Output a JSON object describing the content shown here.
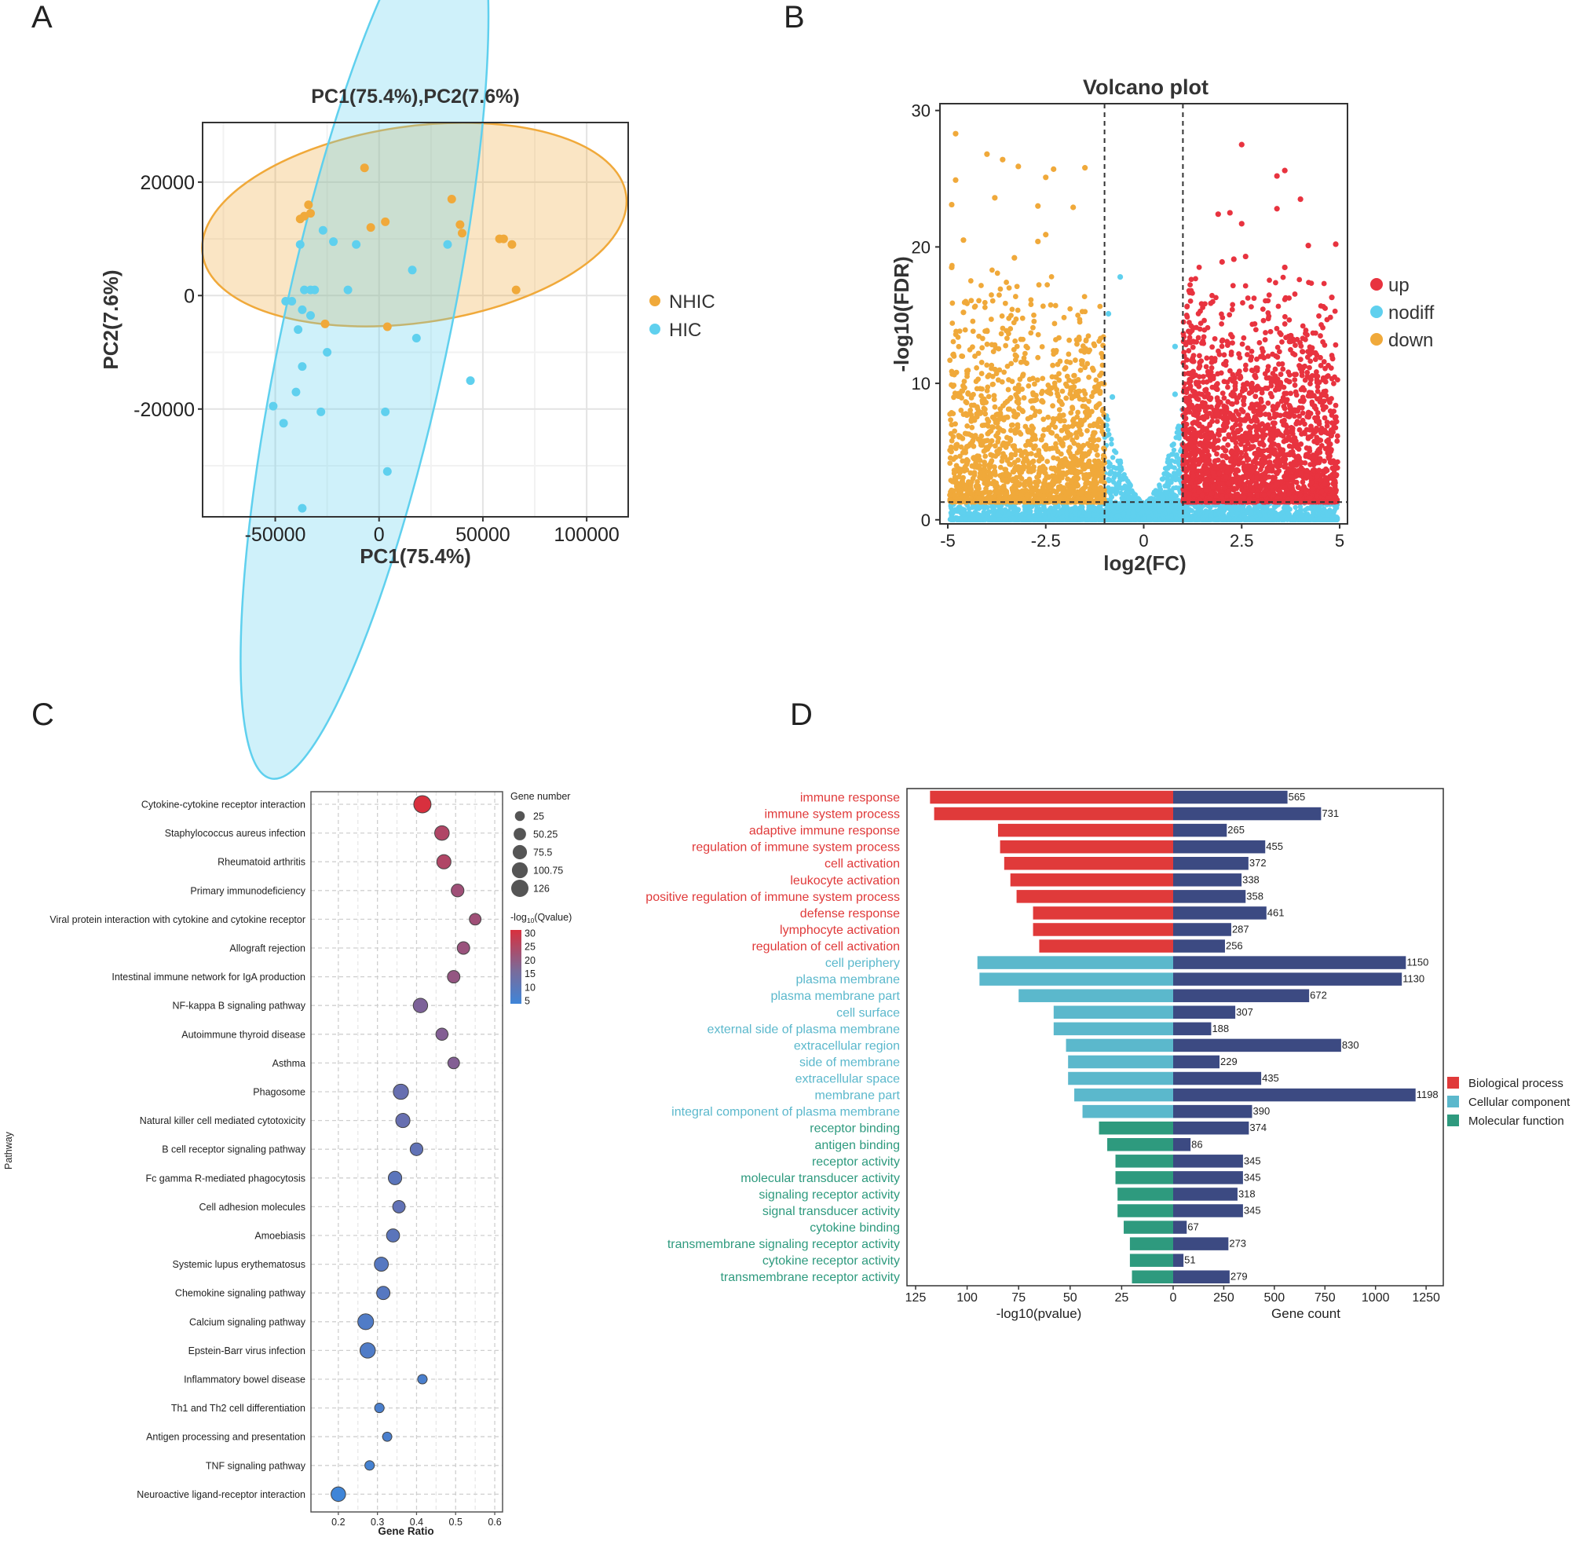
{
  "panels": {
    "a": "A",
    "b": "B",
    "c": "C",
    "d": "D"
  },
  "chart_data": [
    {
      "id": "pca",
      "type": "scatter",
      "title": "PC1(75.4%),PC2(7.6%)",
      "xlabel": "PC1(75.4%)",
      "ylabel": "PC2(7.6%)",
      "xlim": [
        -85000,
        120000
      ],
      "ylim": [
        -39000,
        30500
      ],
      "xticks": [
        -50000,
        0,
        50000,
        100000
      ],
      "xtick_labels": [
        "-50000",
        "0",
        "50000",
        "100000"
      ],
      "yticks": [
        -20000,
        0,
        20000
      ],
      "ytick_labels": [
        "-20000",
        "0",
        "20000"
      ],
      "grid": true,
      "legend_position": "right",
      "colors": {
        "NHIC": "#f0a93a",
        "HIC": "#5fd0ee"
      },
      "legend": [
        "NHIC",
        "HIC"
      ],
      "series": [
        {
          "name": "NHIC",
          "points": [
            [
              -7000,
              22500
            ],
            [
              -38000,
              13500
            ],
            [
              -34000,
              16000
            ],
            [
              -36000,
              14000
            ],
            [
              -33000,
              14500
            ],
            [
              -4000,
              12000
            ],
            [
              3000,
              13000
            ],
            [
              35000,
              17000
            ],
            [
              39000,
              12500
            ],
            [
              40000,
              11000
            ],
            [
              58000,
              10000
            ],
            [
              60000,
              10000
            ],
            [
              64000,
              9000
            ],
            [
              66000,
              1000
            ],
            [
              -26000,
              -5000
            ],
            [
              4000,
              -5500
            ]
          ]
        },
        {
          "name": "HIC",
          "points": [
            [
              -27000,
              11500
            ],
            [
              -22000,
              9500
            ],
            [
              -38000,
              9000
            ],
            [
              -11000,
              9000
            ],
            [
              33000,
              9000
            ],
            [
              16000,
              4500
            ],
            [
              -15000,
              1000
            ],
            [
              -36000,
              1000
            ],
            [
              -33000,
              1000
            ],
            [
              -31000,
              1000
            ],
            [
              -45000,
              -1000
            ],
            [
              -42000,
              -1000
            ],
            [
              -37000,
              -2500
            ],
            [
              -33000,
              -3500
            ],
            [
              -39000,
              -6000
            ],
            [
              -25000,
              -10000
            ],
            [
              -37000,
              -12500
            ],
            [
              -40000,
              -17000
            ],
            [
              -28000,
              -20500
            ],
            [
              -51000,
              -19500
            ],
            [
              -46000,
              -22500
            ],
            [
              3000,
              -20500
            ],
            [
              18000,
              -7500
            ],
            [
              44000,
              -15000
            ],
            [
              4000,
              -31000
            ],
            [
              -37000,
              -37500
            ]
          ]
        }
      ],
      "ellipses": [
        {
          "group": "NHIC",
          "center": [
            17000,
            12500
          ],
          "radii": [
            103000,
            16500
          ],
          "rotation": -8
        },
        {
          "group": "HIC",
          "center": [
            -7000,
            -7500
          ],
          "radii": [
            62000,
            40000
          ],
          "rotation": -78
        }
      ]
    },
    {
      "id": "volcano",
      "type": "scatter",
      "title": "Volcano plot",
      "xlabel": "log2(FC)",
      "ylabel": "-log10(FDR)",
      "xlim": [
        -5.2,
        5.2
      ],
      "ylim": [
        -0.3,
        30.5
      ],
      "xticks": [
        -5,
        -2.5,
        0,
        2.5,
        5
      ],
      "xtick_labels": [
        "-5",
        "-2.5",
        "0",
        "2.5",
        "5"
      ],
      "yticks": [
        0,
        10,
        20,
        30
      ],
      "ytick_labels": [
        "0",
        "10",
        "20",
        "30"
      ],
      "grid": false,
      "fc_threshold": 1,
      "fdr_threshold_log": 1.3,
      "legend_position": "right",
      "colors": {
        "up": "#e8333f",
        "nodiff": "#5fd0ee",
        "down": "#f0a93a"
      },
      "legend": [
        "up",
        "nodiff",
        "down"
      ],
      "highlight_points": {
        "up": [
          [
            2.5,
            27.5
          ],
          [
            3.4,
            25.2
          ],
          [
            3.6,
            25.6
          ],
          [
            4.0,
            23.5
          ],
          [
            3.4,
            22.8
          ],
          [
            2.2,
            22.5
          ],
          [
            1.9,
            22.4
          ],
          [
            2.5,
            21.7
          ],
          [
            4.9,
            20.2
          ],
          [
            4.2,
            20.1
          ],
          [
            2.6,
            19.3
          ],
          [
            2.3,
            19.1
          ],
          [
            2.0,
            18.9
          ],
          [
            3.6,
            18.5
          ],
          [
            4.8,
            16.3
          ]
        ],
        "down": [
          [
            -4.8,
            28.3
          ],
          [
            -4.0,
            26.8
          ],
          [
            -3.2,
            25.9
          ],
          [
            -3.6,
            26.4
          ],
          [
            -2.5,
            25.1
          ],
          [
            -1.5,
            25.8
          ],
          [
            -2.3,
            25.7
          ],
          [
            -4.8,
            24.9
          ],
          [
            -3.8,
            23.6
          ],
          [
            -2.7,
            23.0
          ],
          [
            -4.9,
            23.1
          ],
          [
            -1.8,
            22.9
          ],
          [
            -4.6,
            20.5
          ],
          [
            -2.5,
            20.9
          ],
          [
            -4.6,
            15.2
          ],
          [
            -4.9,
            18.5
          ],
          [
            -3.3,
            19.2
          ],
          [
            -2.7,
            20.4
          ]
        ],
        "nodiff": [
          [
            -0.6,
            17.8
          ],
          [
            -0.9,
            15.1
          ],
          [
            0.8,
            12.7
          ],
          [
            0.8,
            9.2
          ],
          [
            -0.8,
            9.0
          ]
        ]
      }
    },
    {
      "id": "kegg",
      "type": "scatter",
      "ylabel": "Pathway",
      "xlabel": "Gene Ratio",
      "xlim": [
        0.13,
        0.62
      ],
      "xticks": [
        0.2,
        0.3,
        0.4,
        0.5,
        0.6
      ],
      "xtick_labels": [
        "0.2",
        "0.3",
        "0.4",
        "0.5",
        "0.6"
      ],
      "grid": true,
      "legend_position": "right",
      "size_legend": {
        "title": "Gene number",
        "values": [
          25,
          50.25,
          75.5,
          100.75,
          126
        ],
        "labels": [
          "25",
          "50.25",
          "75.5",
          "100.75",
          "126"
        ]
      },
      "color_legend": {
        "title_prefix": "-log",
        "title_sub": "10",
        "title_suffix": "(Qvalue)",
        "ticks": [
          30,
          25,
          20,
          15,
          10,
          5
        ],
        "tick_labels": [
          "30",
          "25",
          "20",
          "15",
          "10",
          "5"
        ],
        "low_color": "#3f85d8",
        "high_color": "#d8303e"
      },
      "pathways": [
        "Cytokine-cytokine receptor interaction",
        "Staphylococcus aureus infection",
        "Rheumatoid arthritis",
        "Primary immunodeficiency",
        "Viral protein interaction with cytokine and cytokine receptor",
        "Allograft rejection",
        "Intestinal immune network for IgA production",
        "NF-kappa B signaling pathway",
        "Autoimmune thyroid disease",
        "Asthma",
        "Phagosome",
        "Natural killer cell mediated cytotoxicity",
        "B cell receptor signaling pathway",
        "Fc gamma R-mediated phagocytosis",
        "Cell adhesion molecules",
        "Amoebiasis",
        "Systemic lupus erythematosus",
        "Chemokine signaling pathway",
        "Calcium signaling pathway",
        "Epstein-Barr virus infection",
        "Inflammatory bowel disease",
        "Th1 and Th2 cell differentiation",
        "Antigen processing and presentation",
        "TNF signaling pathway",
        "Neuroactive ligand-receptor interaction"
      ],
      "gene_ratio": [
        0.415,
        0.465,
        0.47,
        0.505,
        0.55,
        0.52,
        0.495,
        0.41,
        0.465,
        0.495,
        0.36,
        0.365,
        0.4,
        0.345,
        0.355,
        0.34,
        0.31,
        0.315,
        0.27,
        0.275,
        0.415,
        0.305,
        0.325,
        0.28,
        0.2
      ],
      "gene_number": [
        126,
        80,
        75,
        55,
        42,
        52,
        52,
        78,
        48,
        42,
        90,
        75,
        55,
        65,
        52,
        60,
        72,
        62,
        100,
        92,
        22,
        22,
        20,
        22,
        80
      ],
      "neg_log_q": [
        32,
        25,
        25,
        22,
        22,
        21,
        20,
        16,
        17,
        17,
        12,
        12,
        11,
        10,
        11,
        10,
        9,
        9,
        8,
        8,
        7,
        7,
        7,
        6,
        5
      ]
    },
    {
      "id": "go",
      "type": "bar",
      "terms": [
        "immune response",
        "immune system process",
        "adaptive immune response",
        "regulation of immune system process",
        "cell activation",
        "leukocyte activation",
        "positive regulation of immune system process",
        "defense response",
        "lymphocyte activation",
        "regulation of cell activation",
        "cell periphery",
        "plasma membrane",
        "plasma membrane part",
        "cell surface",
        "external side of plasma membrane",
        "extracellular region",
        "side of membrane",
        "extracellular space",
        "membrane part",
        "integral component of plasma membrane",
        "receptor binding",
        "antigen binding",
        "receptor activity",
        "molecular transducer activity",
        "signaling receptor activity",
        "signal transducer activity",
        "cytokine binding",
        "transmembrane signaling receptor activity",
        "cytokine receptor activity",
        "transmembrane receptor activity"
      ],
      "category": [
        "BP",
        "BP",
        "BP",
        "BP",
        "BP",
        "BP",
        "BP",
        "BP",
        "BP",
        "BP",
        "CC",
        "CC",
        "CC",
        "CC",
        "CC",
        "CC",
        "CC",
        "CC",
        "CC",
        "CC",
        "MF",
        "MF",
        "MF",
        "MF",
        "MF",
        "MF",
        "MF",
        "MF",
        "MF",
        "MF"
      ],
      "neg_log_p": [
        118,
        116,
        85,
        84,
        82,
        79,
        76,
        68,
        68,
        65,
        95,
        94,
        75,
        58,
        58,
        52,
        51,
        51,
        48,
        44,
        36,
        32,
        28,
        28,
        27,
        27,
        24,
        21,
        21,
        20
      ],
      "gene_count": [
        565,
        731,
        265,
        455,
        372,
        338,
        358,
        461,
        287,
        256,
        1150,
        1130,
        672,
        307,
        188,
        830,
        229,
        435,
        1198,
        390,
        374,
        86,
        345,
        345,
        318,
        345,
        67,
        273,
        51,
        279
      ],
      "count_labels": [
        "565",
        "731",
        "265",
        "455",
        "372",
        "338",
        "358",
        "461",
        "287",
        "256",
        "1150",
        "1130",
        "672",
        "307",
        "188",
        "830",
        "229",
        "435",
        "1198",
        "390",
        "374",
        "86",
        "345",
        "345",
        "318",
        "345",
        "67",
        "273",
        "51",
        "279"
      ],
      "left_axis": {
        "label": "-log10(pvalue)",
        "ticks": [
          125,
          100,
          75,
          50,
          25,
          0
        ],
        "tick_labels": [
          "125",
          "100",
          "75",
          "50",
          "25",
          "0"
        ],
        "max": 125
      },
      "right_axis": {
        "label": "Gene count",
        "ticks": [
          250,
          500,
          750,
          1000,
          1250
        ],
        "tick_labels": [
          "250",
          "500",
          "750",
          "1000",
          "1250"
        ],
        "max": 1300
      },
      "colors": {
        "BP": "#e03a3a",
        "CC": "#5bb8cc",
        "MF": "#2e9a7e",
        "count": "#3c4a82"
      },
      "legend": [
        {
          "key": "BP",
          "label": "Biological process"
        },
        {
          "key": "CC",
          "label": "Cellular component"
        },
        {
          "key": "MF",
          "label": "Molecular function"
        }
      ],
      "legend_position": "right"
    }
  ]
}
